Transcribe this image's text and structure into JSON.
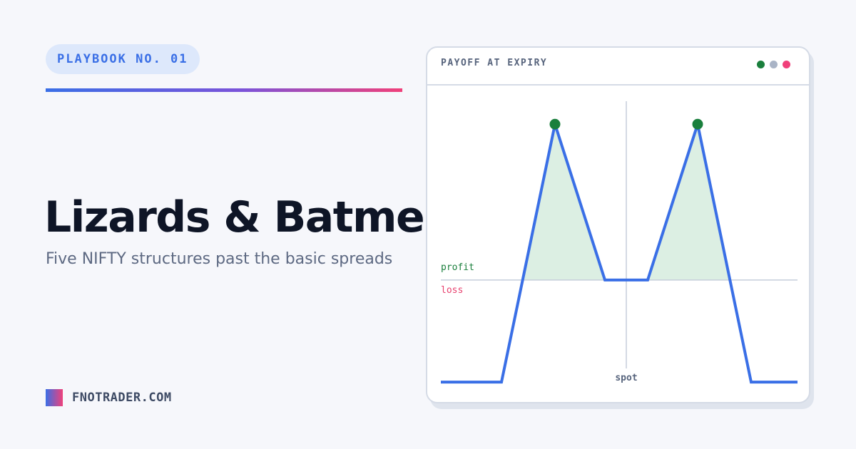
{
  "badge": {
    "label": "PLAYBOOK NO. 01"
  },
  "hero": {
    "title": "Lizards & Batmen",
    "subtitle": "Five NIFTY structures past the basic spreads"
  },
  "brand": {
    "label": "FNOTRADER.COM"
  },
  "card": {
    "title": "PAYOFF AT EXPIRY",
    "window_dots": [
      {
        "name": "green-dot-icon",
        "color": "#1a7f3c"
      },
      {
        "name": "gray-dot-icon",
        "color": "#a9b4c6"
      },
      {
        "name": "red-dot-icon",
        "color": "#f0407a"
      }
    ]
  },
  "chart_data": {
    "type": "line",
    "title": "PAYOFF AT EXPIRY",
    "xlabel": "spot",
    "ylabel": "",
    "labels": {
      "profit": "profit",
      "loss": "loss"
    },
    "xlim": [
      0,
      100
    ],
    "ylim": [
      -50,
      70
    ],
    "grid": false,
    "series": [
      {
        "x": [
          0,
          17,
          32,
          46,
          58,
          72,
          87,
          100
        ],
        "y": [
          -40,
          -40,
          61,
          0,
          0,
          61,
          -40,
          -40
        ]
      }
    ],
    "peaks": [
      {
        "x": 32,
        "y": 61
      },
      {
        "x": 72,
        "y": 61
      }
    ],
    "spot_x": 52,
    "colors": {
      "line": "#3a6fe6",
      "profit_fill": "#dcefe3",
      "peak": "#1a7f3c",
      "profit_text": "#1a7f3c",
      "loss_text": "#e8416e",
      "axis": "#c5cedb",
      "spot_text": "#56637c"
    }
  }
}
